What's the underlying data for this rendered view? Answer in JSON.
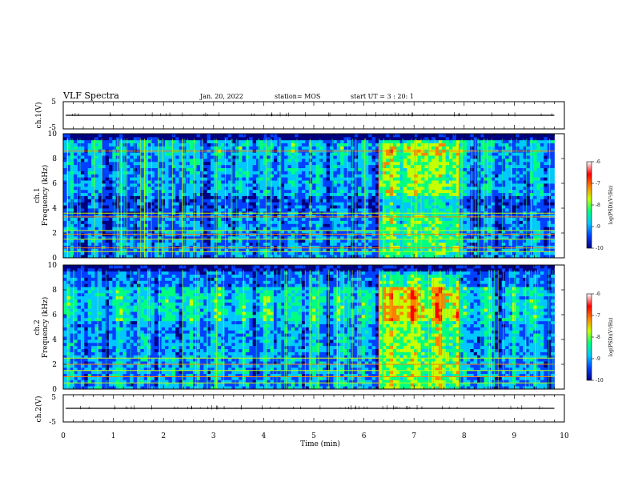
{
  "header": {
    "title": "VLF Spectra",
    "date": "Jan. 20, 2022",
    "station": "station= MOS",
    "start": "start  UT =  3 : 20: 1"
  },
  "chart_data": [
    {
      "type": "line",
      "ylabel": "ch.1(V)",
      "ylim": [
        -5,
        5
      ],
      "yticks": [
        "5",
        "-5"
      ],
      "xlim": [
        0,
        10
      ],
      "description_series": "near-zero trace"
    },
    {
      "type": "heatmap",
      "ylabel_line1": "ch.1",
      "ylabel_line2": "Frequency (kHz)",
      "ylim": [
        0,
        10
      ],
      "yticks": [
        "0",
        "2",
        "4",
        "6",
        "8",
        "10"
      ],
      "xlim": [
        0,
        10
      ],
      "data_end_min": 9.8,
      "high_activity_window_min": [
        6.3,
        7.9
      ],
      "colorbar": {
        "label": "log(PSD)(V²/Hz)",
        "range": [
          -10,
          -6
        ],
        "ticks": [
          "-6",
          "-7",
          "-8",
          "-9",
          "-10"
        ],
        "colors": [
          "#000080",
          "#0040ff",
          "#00c8ff",
          "#00ff80",
          "#c8ff00",
          "#ff8000",
          "#ff0000",
          "#ffffff"
        ]
      },
      "bands_khz": [
        0.5,
        0.8,
        1.5,
        1.9,
        2.2,
        3.3,
        3.6,
        8.6
      ]
    },
    {
      "type": "heatmap",
      "ylabel_line1": "ch.2",
      "ylabel_line2": "Frequency (kHz)",
      "ylim": [
        0,
        10
      ],
      "yticks": [
        "0",
        "2",
        "4",
        "6",
        "8",
        "10"
      ],
      "xlim": [
        0,
        10
      ],
      "data_end_min": 9.8,
      "high_activity_window_min": [
        6.3,
        7.9
      ],
      "colorbar": {
        "label": "log(PSD)(V²/Hz)",
        "range": [
          -10,
          -6
        ],
        "ticks": [
          "-6",
          "-7",
          "-8",
          "-9",
          "-10"
        ],
        "colors": [
          "#000080",
          "#0040ff",
          "#00c8ff",
          "#00ff80",
          "#c8ff00",
          "#ff8000",
          "#ff0000",
          "#ffffff"
        ]
      },
      "bands_khz": [
        0.5,
        1.0,
        1.5,
        2.0,
        2.5
      ]
    },
    {
      "type": "line",
      "ylabel": "ch.2(V)",
      "ylim": [
        -5,
        5
      ],
      "yticks": [
        "5",
        "-5"
      ],
      "xlim": [
        0,
        10
      ],
      "xlabel": "Time (min)",
      "xticks": [
        "0",
        "1",
        "2",
        "3",
        "4",
        "5",
        "6",
        "7",
        "8",
        "9",
        "10"
      ],
      "description_series": "near-zero trace"
    }
  ]
}
